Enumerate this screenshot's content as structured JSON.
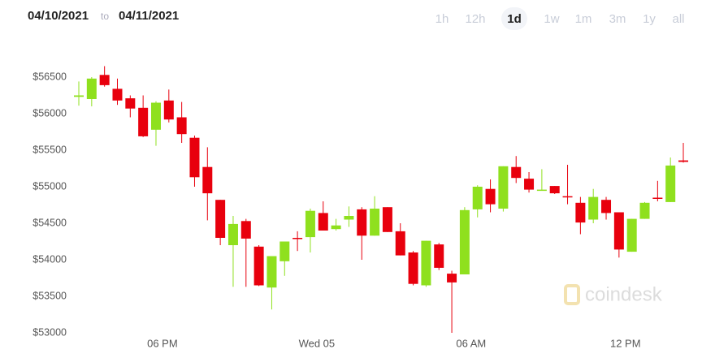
{
  "header": {
    "from": "04/10/2021",
    "to_word": "to",
    "to": "04/11/2021",
    "range_buttons": [
      "1h",
      "12h",
      "1d",
      "1w",
      "1m",
      "3m",
      "1y",
      "all"
    ],
    "selected_index": 2
  },
  "watermark": "coindesk",
  "chart_data": {
    "type": "candlestick",
    "categories": [
      null,
      null,
      null,
      null,
      null,
      null,
      null,
      "06 PM",
      null,
      null,
      null,
      null,
      null,
      null,
      null,
      null,
      null,
      null,
      null,
      "Wed 05",
      null,
      null,
      null,
      null,
      null,
      null,
      null,
      null,
      null,
      null,
      null,
      "06 AM",
      null,
      null,
      null,
      null,
      null,
      null,
      null,
      null,
      null,
      null,
      null,
      "12 PM",
      null,
      null,
      null,
      null
    ],
    "open": [
      56230,
      56200,
      56530,
      56340,
      56210,
      56080,
      55780,
      56180,
      55950,
      55670,
      55270,
      54820,
      54200,
      54530,
      54180,
      53620,
      53980,
      54300,
      54310,
      54640,
      54420,
      54550,
      54690,
      54330,
      54720,
      54390,
      54100,
      53650,
      54210,
      53810,
      53800,
      54690,
      54970,
      54700,
      55270,
      55110,
      54950,
      55010,
      54870,
      54780,
      54550,
      54820,
      54650,
      54110,
      54560,
      54850,
      54790,
      55360
    ],
    "high": [
      56440,
      56500,
      56650,
      56480,
      56250,
      56250,
      56170,
      56330,
      56160,
      55700,
      55540,
      54820,
      54600,
      54560,
      54200,
      54050,
      54250,
      54390,
      54700,
      54800,
      54560,
      54730,
      54720,
      54870,
      54720,
      54500,
      54120,
      54260,
      54230,
      53850,
      54720,
      55020,
      55100,
      55280,
      55420,
      55200,
      55240,
      55010,
      55300,
      54860,
      54970,
      54860,
      54650,
      54560,
      54790,
      55080,
      55400,
      55600
    ],
    "low": [
      56110,
      56100,
      56370,
      56120,
      55950,
      55680,
      55560,
      55880,
      55600,
      55000,
      54540,
      54200,
      53630,
      53630,
      53640,
      53320,
      53780,
      54120,
      54100,
      54400,
      54400,
      54450,
      54000,
      54330,
      54380,
      54060,
      53650,
      53630,
      53860,
      53000,
      53800,
      54580,
      54650,
      54660,
      55050,
      54920,
      54950,
      54900,
      54760,
      54350,
      54500,
      54550,
      54030,
      54110,
      54560,
      54800,
      54790,
      55330
    ],
    "close": [
      56250,
      56480,
      56390,
      56180,
      56070,
      55690,
      56150,
      55920,
      55720,
      55130,
      54910,
      54300,
      54490,
      54290,
      53650,
      54050,
      54250,
      54290,
      54670,
      54400,
      54470,
      54600,
      54330,
      54700,
      54380,
      54060,
      53670,
      54260,
      53890,
      53690,
      54680,
      55000,
      54760,
      55280,
      55120,
      54960,
      54960,
      54910,
      54860,
      54510,
      54860,
      54640,
      54140,
      54560,
      54780,
      54840,
      55290,
      55340
    ],
    "up_color": "#8fe01e",
    "down_color": "#e8000d",
    "ylim": [
      53000,
      56900
    ],
    "yticks": [
      {
        "value": 53000,
        "label": "$53000"
      },
      {
        "value": 53500,
        "label": "$53500"
      },
      {
        "value": 54000,
        "label": "$54000"
      },
      {
        "value": 54500,
        "label": "$54500"
      },
      {
        "value": 55000,
        "label": "$55000"
      },
      {
        "value": 55500,
        "label": "$55500"
      },
      {
        "value": 56000,
        "label": "$56000"
      },
      {
        "value": 56500,
        "label": "$56500"
      }
    ],
    "grid": false
  }
}
